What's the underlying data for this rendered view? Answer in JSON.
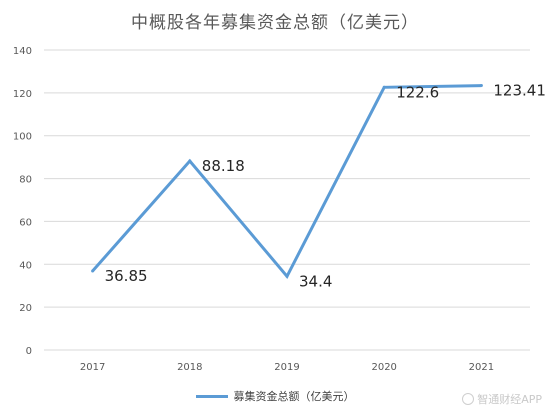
{
  "chart_data": {
    "type": "line",
    "title": "中概股各年募集资金总额（亿美元）",
    "categories": [
      "2017",
      "2018",
      "2019",
      "2020",
      "2021"
    ],
    "series": [
      {
        "name": "募集资金总额（亿美元）",
        "values": [
          36.85,
          88.18,
          34.4,
          122.6,
          123.41
        ]
      }
    ],
    "data_labels": [
      "36.85",
      "88.18",
      "34.4",
      "122.6",
      "123.41"
    ],
    "ylim": [
      0,
      140
    ],
    "yticks": [
      0,
      20,
      40,
      60,
      80,
      100,
      120,
      140
    ],
    "grid": true,
    "legend_position": "bottom",
    "line_color": "#5b9bd5",
    "grid_color": "#d9d9d9"
  },
  "watermark": {
    "text": "智通财经APP"
  }
}
